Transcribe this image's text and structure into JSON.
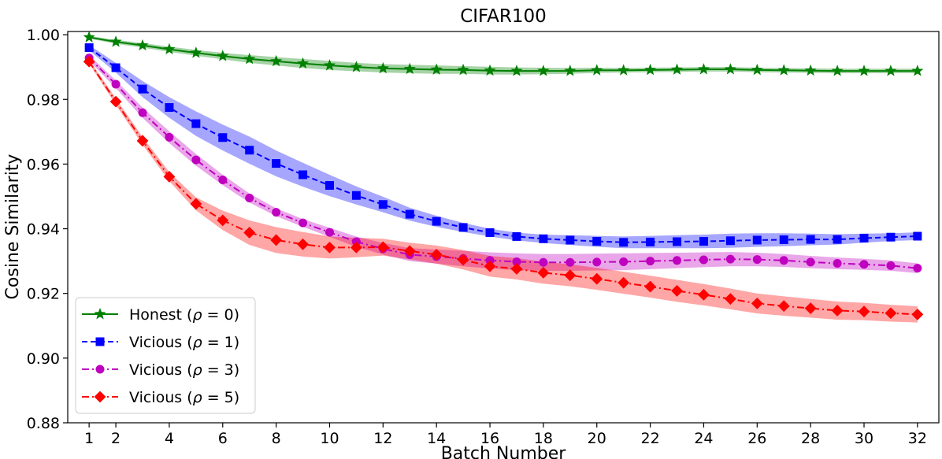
{
  "chart_data": {
    "type": "line",
    "title": "CIFAR100",
    "xlabel": "Batch Number",
    "ylabel": "Cosine Similarity",
    "xlim": [
      0.2,
      32.8
    ],
    "ylim": [
      0.88,
      1.001
    ],
    "x_ticks": [
      1,
      2,
      4,
      6,
      8,
      10,
      12,
      14,
      16,
      18,
      20,
      22,
      24,
      26,
      28,
      30,
      32
    ],
    "x_tick_labels": [
      "1",
      "2",
      "4",
      "6",
      "8",
      "10",
      "12",
      "14",
      "16",
      "18",
      "20",
      "22",
      "24",
      "26",
      "28",
      "30",
      "32"
    ],
    "y_ticks": [
      0.88,
      0.9,
      0.92,
      0.94,
      0.96,
      0.98,
      1.0
    ],
    "y_tick_labels": [
      "0.88",
      "0.90",
      "0.92",
      "0.94",
      "0.96",
      "0.98",
      "1.00"
    ],
    "grid": false,
    "legend_position": "lower-left",
    "x": [
      1,
      2,
      3,
      4,
      5,
      6,
      7,
      8,
      9,
      10,
      11,
      12,
      13,
      14,
      15,
      16,
      17,
      18,
      19,
      20,
      21,
      22,
      23,
      24,
      25,
      26,
      27,
      28,
      29,
      30,
      31,
      32
    ],
    "series": [
      {
        "name": "Honest (ρ = 0)",
        "legend_prefix": "Honest (",
        "legend_symbol": "ρ",
        "legend_suffix": " = 0)",
        "color": "#008000",
        "marker": "star",
        "dash": "solid",
        "values": [
          0.9992,
          0.9978,
          0.9967,
          0.9955,
          0.9944,
          0.9934,
          0.9925,
          0.9918,
          0.9911,
          0.9905,
          0.99,
          0.9896,
          0.9894,
          0.9892,
          0.9891,
          0.9889,
          0.9888,
          0.9888,
          0.9888,
          0.989,
          0.989,
          0.9891,
          0.9892,
          0.9893,
          0.9893,
          0.9891,
          0.989,
          0.9889,
          0.9888,
          0.9888,
          0.9888,
          0.9888
        ],
        "band": [
          0.0004,
          0.0006,
          0.0007,
          0.0008,
          0.0009,
          0.001,
          0.0012,
          0.0013,
          0.0014,
          0.0014,
          0.0013,
          0.0013,
          0.0013,
          0.0013,
          0.0012,
          0.0012,
          0.0011,
          0.001,
          0.0009,
          0.0008,
          0.0007,
          0.0007,
          0.0007,
          0.0007,
          0.0007,
          0.0007,
          0.0007,
          0.0007,
          0.0007,
          0.0007,
          0.0007,
          0.0007
        ]
      },
      {
        "name": "Vicious (ρ = 1)",
        "legend_prefix": "Vicious (",
        "legend_symbol": "ρ",
        "legend_suffix": " = 1)",
        "color": "#0000ff",
        "marker": "square",
        "dash": "dashed",
        "values": [
          0.996,
          0.9898,
          0.9832,
          0.9775,
          0.9725,
          0.9682,
          0.9643,
          0.9602,
          0.9567,
          0.9534,
          0.9503,
          0.9475,
          0.9445,
          0.9423,
          0.9404,
          0.9388,
          0.9376,
          0.9369,
          0.9365,
          0.9361,
          0.9358,
          0.9359,
          0.936,
          0.9361,
          0.9363,
          0.9365,
          0.9366,
          0.9367,
          0.9367,
          0.9371,
          0.9374,
          0.9377
        ],
        "band": [
          0.0008,
          0.0015,
          0.0025,
          0.0032,
          0.0038,
          0.004,
          0.0042,
          0.004,
          0.0037,
          0.0033,
          0.0028,
          0.0024,
          0.002,
          0.0017,
          0.0014,
          0.0012,
          0.0012,
          0.0013,
          0.0015,
          0.0017,
          0.0018,
          0.0019,
          0.002,
          0.0021,
          0.0022,
          0.0021,
          0.002,
          0.0018,
          0.0016,
          0.0014,
          0.0012,
          0.0012
        ]
      },
      {
        "name": "Vicious (ρ = 3)",
        "legend_prefix": "Vicious (",
        "legend_symbol": "ρ",
        "legend_suffix": " = 3)",
        "color": "#bf00bf",
        "marker": "circle",
        "dash": "dashdot",
        "values": [
          0.9928,
          0.9847,
          0.9759,
          0.9683,
          0.9613,
          0.9551,
          0.9495,
          0.9451,
          0.9418,
          0.9389,
          0.936,
          0.9338,
          0.932,
          0.9314,
          0.9308,
          0.9302,
          0.9298,
          0.9296,
          0.9296,
          0.9297,
          0.9298,
          0.93,
          0.9302,
          0.9304,
          0.9306,
          0.9305,
          0.9302,
          0.9297,
          0.9293,
          0.929,
          0.9286,
          0.9278
        ],
        "band": [
          0.0008,
          0.0012,
          0.0016,
          0.0018,
          0.0018,
          0.0016,
          0.0014,
          0.0012,
          0.0012,
          0.0014,
          0.0016,
          0.0018,
          0.002,
          0.0022,
          0.0024,
          0.0025,
          0.0026,
          0.0026,
          0.0026,
          0.0026,
          0.0026,
          0.0025,
          0.0024,
          0.0023,
          0.0022,
          0.0021,
          0.002,
          0.0019,
          0.0018,
          0.0017,
          0.0016,
          0.0015
        ]
      },
      {
        "name": "Vicious (ρ = 5)",
        "legend_prefix": "Vicious (",
        "legend_symbol": "ρ",
        "legend_suffix": " = 5)",
        "color": "#ff0000",
        "marker": "diamond",
        "dash": "dashdot",
        "values": [
          0.9917,
          0.9793,
          0.9672,
          0.9561,
          0.9477,
          0.9426,
          0.9388,
          0.9365,
          0.9352,
          0.9342,
          0.9342,
          0.9343,
          0.9331,
          0.932,
          0.9304,
          0.9284,
          0.9276,
          0.9264,
          0.9256,
          0.9245,
          0.9233,
          0.9221,
          0.9208,
          0.9196,
          0.9183,
          0.9169,
          0.9161,
          0.9154,
          0.9147,
          0.9144,
          0.9139,
          0.9135
        ],
        "band": [
          0.0006,
          0.001,
          0.0012,
          0.0014,
          0.002,
          0.003,
          0.0038,
          0.004,
          0.0038,
          0.0034,
          0.003,
          0.0026,
          0.0026,
          0.0028,
          0.003,
          0.0032,
          0.0033,
          0.0034,
          0.0034,
          0.0034,
          0.0034,
          0.0034,
          0.0034,
          0.0033,
          0.0032,
          0.0031,
          0.003,
          0.0029,
          0.0028,
          0.0027,
          0.0026,
          0.0025
        ]
      }
    ]
  }
}
